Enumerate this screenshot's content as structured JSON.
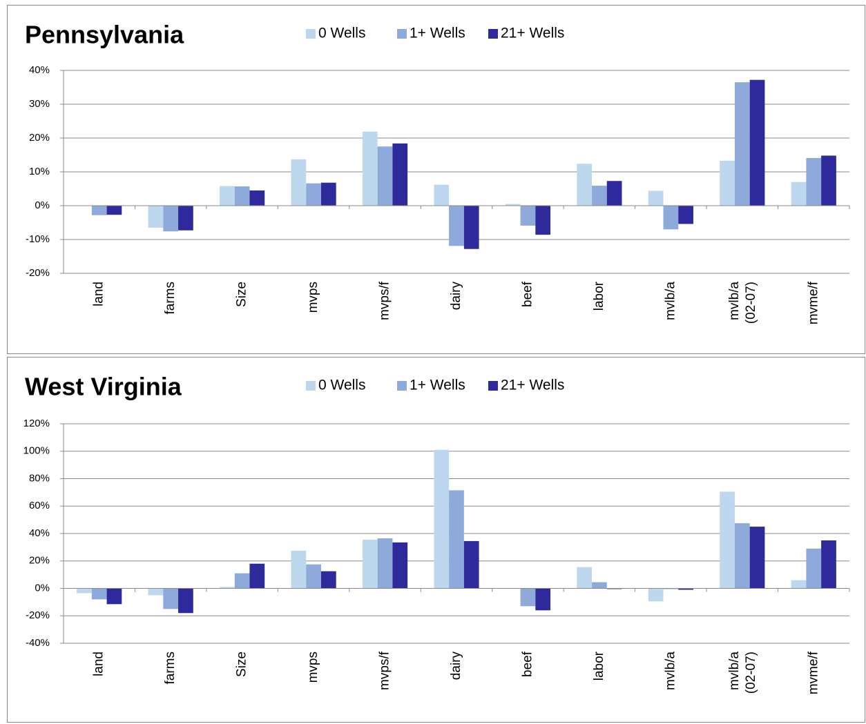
{
  "chart_data": [
    {
      "type": "bar",
      "title": "Pennsylvania",
      "categories": [
        "land",
        "farms",
        "Size",
        "mvps",
        "mvps/f",
        "dairy",
        "beef",
        "labor",
        "mvlb/a",
        "mvlb/a (02-07)",
        "mvme/f"
      ],
      "series": [
        {
          "name": "0 Wells",
          "color": "#bdd7ee",
          "values": [
            0,
            -6.5,
            5.8,
            13.7,
            21.9,
            6.2,
            0.5,
            12.4,
            4.4,
            13.3,
            7.0
          ]
        },
        {
          "name": "1+ Wells",
          "color": "#8eaadb",
          "values": [
            -2.8,
            -7.6,
            5.7,
            6.6,
            17.5,
            -11.9,
            -5.9,
            5.9,
            -7.0,
            36.5,
            14.1
          ]
        },
        {
          "name": "21+ Wells",
          "color": "#2e2a9c",
          "values": [
            -2.7,
            -7.3,
            4.5,
            6.8,
            18.4,
            -12.8,
            -8.6,
            7.3,
            -5.4,
            37.2,
            14.8
          ]
        }
      ],
      "ylim": [
        -20,
        40
      ],
      "yticks": [
        {
          "value": -20,
          "label": "-20%"
        },
        {
          "value": -10,
          "label": "-10%"
        },
        {
          "value": 0,
          "label": "0%"
        },
        {
          "value": 10,
          "label": "10%"
        },
        {
          "value": 20,
          "label": "20%"
        },
        {
          "value": 30,
          "label": "30%"
        },
        {
          "value": 40,
          "label": "40%"
        }
      ],
      "grid": true,
      "legend": "top"
    },
    {
      "type": "bar",
      "title": "West Virginia",
      "categories": [
        "land",
        "farms",
        "Size",
        "mvps",
        "mvps/f",
        "dairy",
        "beef",
        "labor",
        "mvlb/a",
        "mvlb/a (02-07)",
        "mvme/f"
      ],
      "series": [
        {
          "name": "0 Wells",
          "color": "#bdd7ee",
          "values": [
            -3.5,
            -5,
            1,
            27.5,
            35.5,
            101,
            0,
            15.5,
            -9.5,
            70.5,
            6
          ]
        },
        {
          "name": "1+ Wells",
          "color": "#8eaadb",
          "values": [
            -8,
            -15,
            11,
            17.5,
            36.5,
            71.5,
            -13,
            4.5,
            -0.5,
            47.5,
            29
          ]
        },
        {
          "name": "21+ Wells",
          "color": "#2e2a9c",
          "values": [
            -11.5,
            -18,
            18,
            12.5,
            33.5,
            34.5,
            -16,
            -0.5,
            -1,
            45,
            35
          ]
        }
      ],
      "ylim": [
        -40,
        120
      ],
      "yticks": [
        {
          "value": -40,
          "label": "-40%"
        },
        {
          "value": -20,
          "label": "-20%"
        },
        {
          "value": 0,
          "label": "0%"
        },
        {
          "value": 20,
          "label": "20%"
        },
        {
          "value": 40,
          "label": "40%"
        },
        {
          "value": 60,
          "label": "60%"
        },
        {
          "value": 80,
          "label": "80%"
        },
        {
          "value": 100,
          "label": "100%"
        },
        {
          "value": 120,
          "label": "120%"
        }
      ],
      "grid": true,
      "legend": "top"
    }
  ]
}
